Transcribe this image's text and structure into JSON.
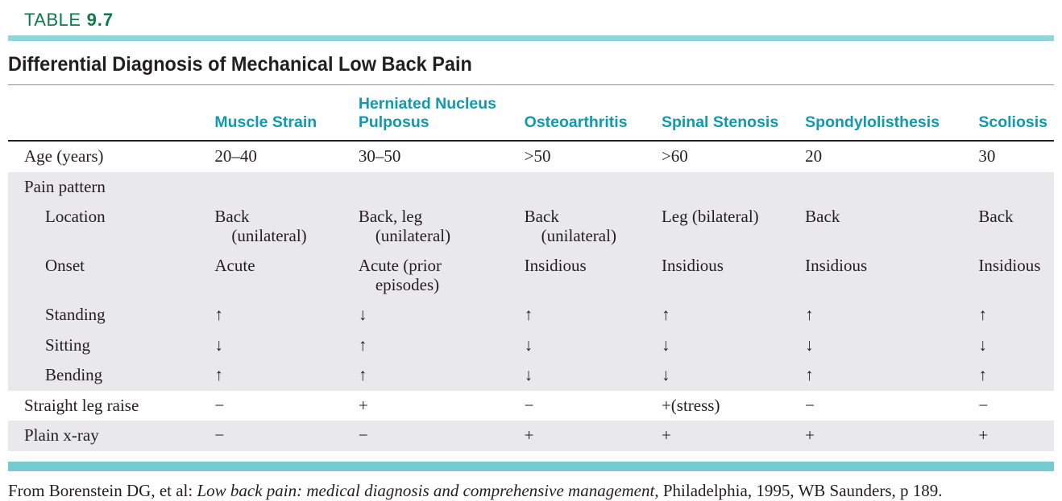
{
  "colors": {
    "label_green": "#0b7a49",
    "teal_rule_top": "#93d3db",
    "teal_rule_bottom": "#76cad3",
    "header_text_teal": "#1199ae",
    "shaded_row_gray": "#e9e9eb"
  },
  "table_label": {
    "prefix": "TABLE",
    "number": "9.7"
  },
  "title": "Differential Diagnosis of Mechanical Low Back Pain",
  "table": {
    "columns": [
      "",
      "Muscle Strain",
      "Herniated Nucleus Pulposus",
      "Osteoarthritis",
      "Spinal Stenosis",
      "Spondylolisthesis",
      "Scoliosis"
    ],
    "rows": [
      {
        "label": "Age (years)",
        "indent": false,
        "shaded": false,
        "cells": [
          "20–40",
          "30–50",
          ">50",
          ">60",
          "20",
          "30"
        ]
      },
      {
        "label": "Pain pattern",
        "indent": false,
        "shaded": true,
        "cells": [
          "",
          "",
          "",
          "",
          "",
          ""
        ]
      },
      {
        "label": "Location",
        "indent": true,
        "shaded": true,
        "cells": [
          "Back\n    (unilateral)",
          "Back, leg\n    (unilateral)",
          "Back\n    (unilateral)",
          "Leg (bilateral)",
          "Back",
          "Back"
        ]
      },
      {
        "label": "Onset",
        "indent": true,
        "shaded": true,
        "cells": [
          "Acute",
          "Acute (prior\n    episodes)",
          "Insidious",
          "Insidious",
          "Insidious",
          "Insidious"
        ]
      },
      {
        "label": "Standing",
        "indent": true,
        "shaded": true,
        "cells": [
          "↑",
          "↓",
          "↑",
          "↑",
          "↑",
          "↑"
        ]
      },
      {
        "label": "Sitting",
        "indent": true,
        "shaded": true,
        "cells": [
          "↓",
          "↑",
          "↓",
          "↓",
          "↓",
          "↓"
        ]
      },
      {
        "label": "Bending",
        "indent": true,
        "shaded": true,
        "cells": [
          "↑",
          "↑",
          "↓",
          "↓",
          "↑",
          "↑"
        ]
      },
      {
        "label": "Straight leg raise",
        "indent": false,
        "shaded": false,
        "cells": [
          "−",
          "+",
          "−",
          "+(stress)",
          "−",
          "−"
        ]
      },
      {
        "label": "Plain x-ray",
        "indent": false,
        "shaded": true,
        "cells": [
          "−",
          "−",
          "+",
          "+",
          "+",
          "+"
        ]
      }
    ]
  },
  "footer": {
    "prefix": "From Borenstein DG, et al: ",
    "italic": "Low back pain: medical diagnosis and comprehensive management",
    "suffix": ", Philadelphia, 1995, WB Saunders, p 189."
  }
}
